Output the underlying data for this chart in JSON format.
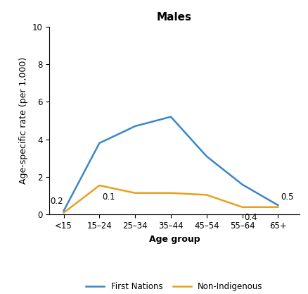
{
  "title": "Males",
  "xlabel": "Age group",
  "ylabel": "Age-specific rate (per 1,000)",
  "age_groups": [
    "<15",
    "15–24",
    "25–34",
    "35–44",
    "45–54",
    "55–64",
    "65+"
  ],
  "first_nations": [
    0.2,
    3.8,
    4.7,
    5.2,
    3.1,
    1.6,
    0.5
  ],
  "non_indigenous": [
    0.1,
    1.55,
    1.15,
    1.15,
    1.05,
    0.4,
    0.4
  ],
  "first_nations_color": "#3a86c8",
  "non_indigenous_color": "#e8a020",
  "ylim": [
    0,
    10
  ],
  "yticks": [
    0,
    2,
    4,
    6,
    8,
    10
  ],
  "xlim_left": -0.4,
  "xlim_right": 6.6,
  "legend_first_nations": "First Nations",
  "legend_non_indigenous": "Non-Indigenous",
  "linewidth": 1.8,
  "title_fontsize": 11,
  "axis_label_fontsize": 9,
  "tick_fontsize": 8.5,
  "annot_fontsize": 8.5
}
